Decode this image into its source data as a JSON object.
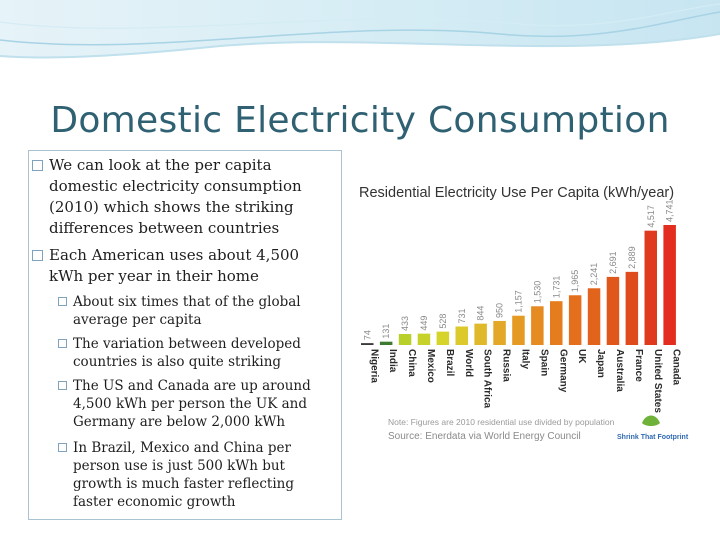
{
  "slide": {
    "title": "Domestic Electricity Consumption",
    "bullets": [
      {
        "level": 1,
        "text": "We can look at the per capita domestic electricity consumption (2010) which shows the striking differences between countries"
      },
      {
        "level": 1,
        "text": "Each American uses about 4,500 kWh per year in their home"
      },
      {
        "level": 2,
        "text": "About six times that of the global average per capita"
      },
      {
        "level": 2,
        "text": "The variation between developed countries is also quite striking"
      },
      {
        "level": 2,
        "text": "The US and Canada are up around 4,500 kWh per person the UK and Germany are below 2,000 kWh"
      },
      {
        "level": 2,
        "text": "In Brazil, Mexico and China per person use is just 500 kWh but growth is much faster reflecting faster economic growth"
      }
    ]
  },
  "chart_data": {
    "type": "bar",
    "title": "Residential Electricity Use Per Capita (kWh/year)",
    "categories": [
      "Nigeria",
      "India",
      "China",
      "Mexico",
      "Brazil",
      "World",
      "South Africa",
      "Russia",
      "Italy",
      "Spain",
      "Germany",
      "UK",
      "Japan",
      "Australia",
      "France",
      "United States",
      "Canada"
    ],
    "values": [
      74,
      131,
      433,
      449,
      528,
      731,
      844,
      950,
      1157,
      1530,
      1731,
      1965,
      2241,
      2691,
      2889,
      4517,
      4741
    ],
    "value_labels": [
      "74",
      "131",
      "433",
      "449",
      "528",
      "731",
      "844",
      "950",
      "1,157",
      "1,530",
      "1,731",
      "1,965",
      "2,241",
      "2,691",
      "2,889",
      "4,517",
      "4,741"
    ],
    "ylim": [
      0,
      4741
    ],
    "grid": false,
    "colors": [
      "#3a3a3a",
      "#3d7a2f",
      "#b9cf2a",
      "#c6d22a",
      "#d6d32b",
      "#dcc92b",
      "#e0b92a",
      "#e3a827",
      "#e59a24",
      "#e68b21",
      "#e57d1f",
      "#e4701d",
      "#e2641c",
      "#e0571c",
      "#df4b1d",
      "#e03a1e",
      "#e22d1f"
    ],
    "note": "Note: Figures are 2010 residential use divided by population",
    "source": "Source: Enerdata via World Energy Council",
    "brand": "Shrink That Footprint"
  }
}
